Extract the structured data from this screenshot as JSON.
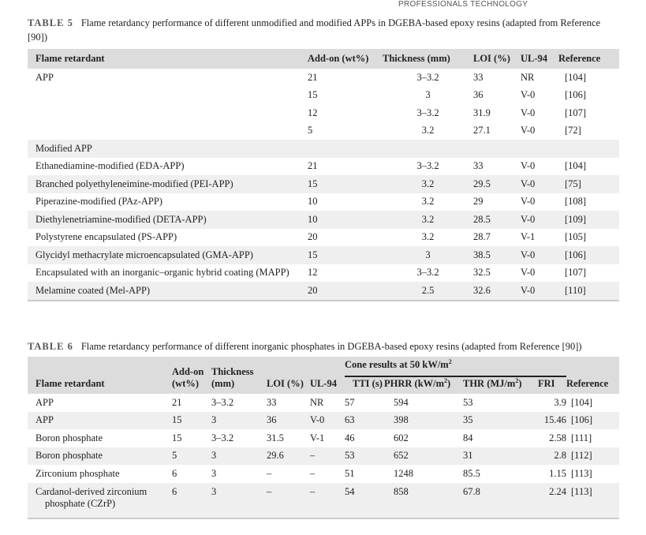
{
  "logo": {
    "text": "PROFESSIONALS TECHNOLOGY"
  },
  "table5": {
    "number": "TABLE 5",
    "caption": "Flame retardancy performance of different unmodified and modified APPs in DGEBA-based epoxy resins (adapted from Reference [90])",
    "headers": [
      "Flame retardant",
      "Add-on (wt%)",
      "Thickness (mm)",
      "LOI (%)",
      "UL-94",
      "Reference"
    ],
    "rows": [
      [
        "APP",
        "21",
        "3–3.2",
        "33",
        "NR",
        "[104]"
      ],
      [
        "",
        "15",
        "3",
        "36",
        "V-0",
        "[106]"
      ],
      [
        "",
        "12",
        "3–3.2",
        "31.9",
        "V-0",
        "[107]"
      ],
      [
        "",
        "5",
        "3.2",
        "27.1",
        "V-0",
        "[72]"
      ],
      [
        "Modified APP",
        "",
        "",
        "",
        "",
        ""
      ],
      [
        "Ethanediamine-modified (EDA-APP)",
        "21",
        "3–3.2",
        "33",
        "V-0",
        "[104]"
      ],
      [
        "Branched polyethyleneimine-modified (PEI-APP)",
        "15",
        "3.2",
        "29.5",
        "V-0",
        "[75]"
      ],
      [
        "Piperazine-modified (PAz-APP)",
        "10",
        "3.2",
        "29",
        "V-0",
        "[108]"
      ],
      [
        "Diethylenetriamine-modified (DETA-APP)",
        "10",
        "3.2",
        "28.5",
        "V-0",
        "[109]"
      ],
      [
        "Polystyrene encapsulated (PS-APP)",
        "20",
        "3.2",
        "28.7",
        "V-1",
        "[105]"
      ],
      [
        "Glycidyl methacrylate microencapsulated (GMA-APP)",
        "15",
        "3",
        "38.5",
        "V-0",
        "[106]"
      ],
      [
        "Encapsulated with an inorganic–organic hybrid coating (MAPP)",
        "12",
        "3–3.2",
        "32.5",
        "V-0",
        "[107]"
      ],
      [
        "Melamine coated (Mel-APP)",
        "20",
        "2.5",
        "32.6",
        "V-0",
        "[110]"
      ]
    ]
  },
  "table6": {
    "number": "TABLE 6",
    "caption": "Flame retardancy performance of different inorganic phosphates in DGEBA-based epoxy resins (adapted from Reference [90])",
    "group_header": "Cone results at 50 kW/m",
    "group_sup": "2",
    "headers": {
      "name": "Flame retardant",
      "addon1": "Add-on",
      "addon2": "(wt%)",
      "thick1": "Thickness",
      "thick2": "(mm)",
      "loi": "LOI (%)",
      "ul": "UL-94",
      "tti": "TTI (s)",
      "phrr": "PHRR (kW/m",
      "phrr_sup": "2",
      "phrr_end": ")",
      "thr": "THR (MJ/m",
      "thr_sup": "2",
      "thr_end": ")",
      "fri": "FRI",
      "ref": "Reference"
    },
    "rows": [
      [
        "APP",
        "21",
        "3–3.2",
        "33",
        "NR",
        "57",
        "594",
        "53",
        "3.9",
        "[104]"
      ],
      [
        "APP",
        "15",
        "3",
        "36",
        "V-0",
        "63",
        "398",
        "35",
        "15.46",
        "[106]"
      ],
      [
        "Boron phosphate",
        "15",
        "3–3.2",
        "31.5",
        "V-1",
        "46",
        "602",
        "84",
        "2.58",
        "[111]"
      ],
      [
        "Boron phosphate",
        "5",
        "3",
        "29.6",
        "–",
        "53",
        "652",
        "31",
        "2.8",
        "[112]"
      ],
      [
        "Zirconium phosphate",
        "6",
        "3",
        "–",
        "–",
        "51",
        "1248",
        "85.5",
        "1.15",
        "[113]"
      ],
      [
        "Cardanol-derived zirconium phosphate (CZrP)",
        "6",
        "3",
        "–",
        "–",
        "54",
        "858",
        "67.8",
        "2.24",
        "[113]"
      ]
    ]
  }
}
